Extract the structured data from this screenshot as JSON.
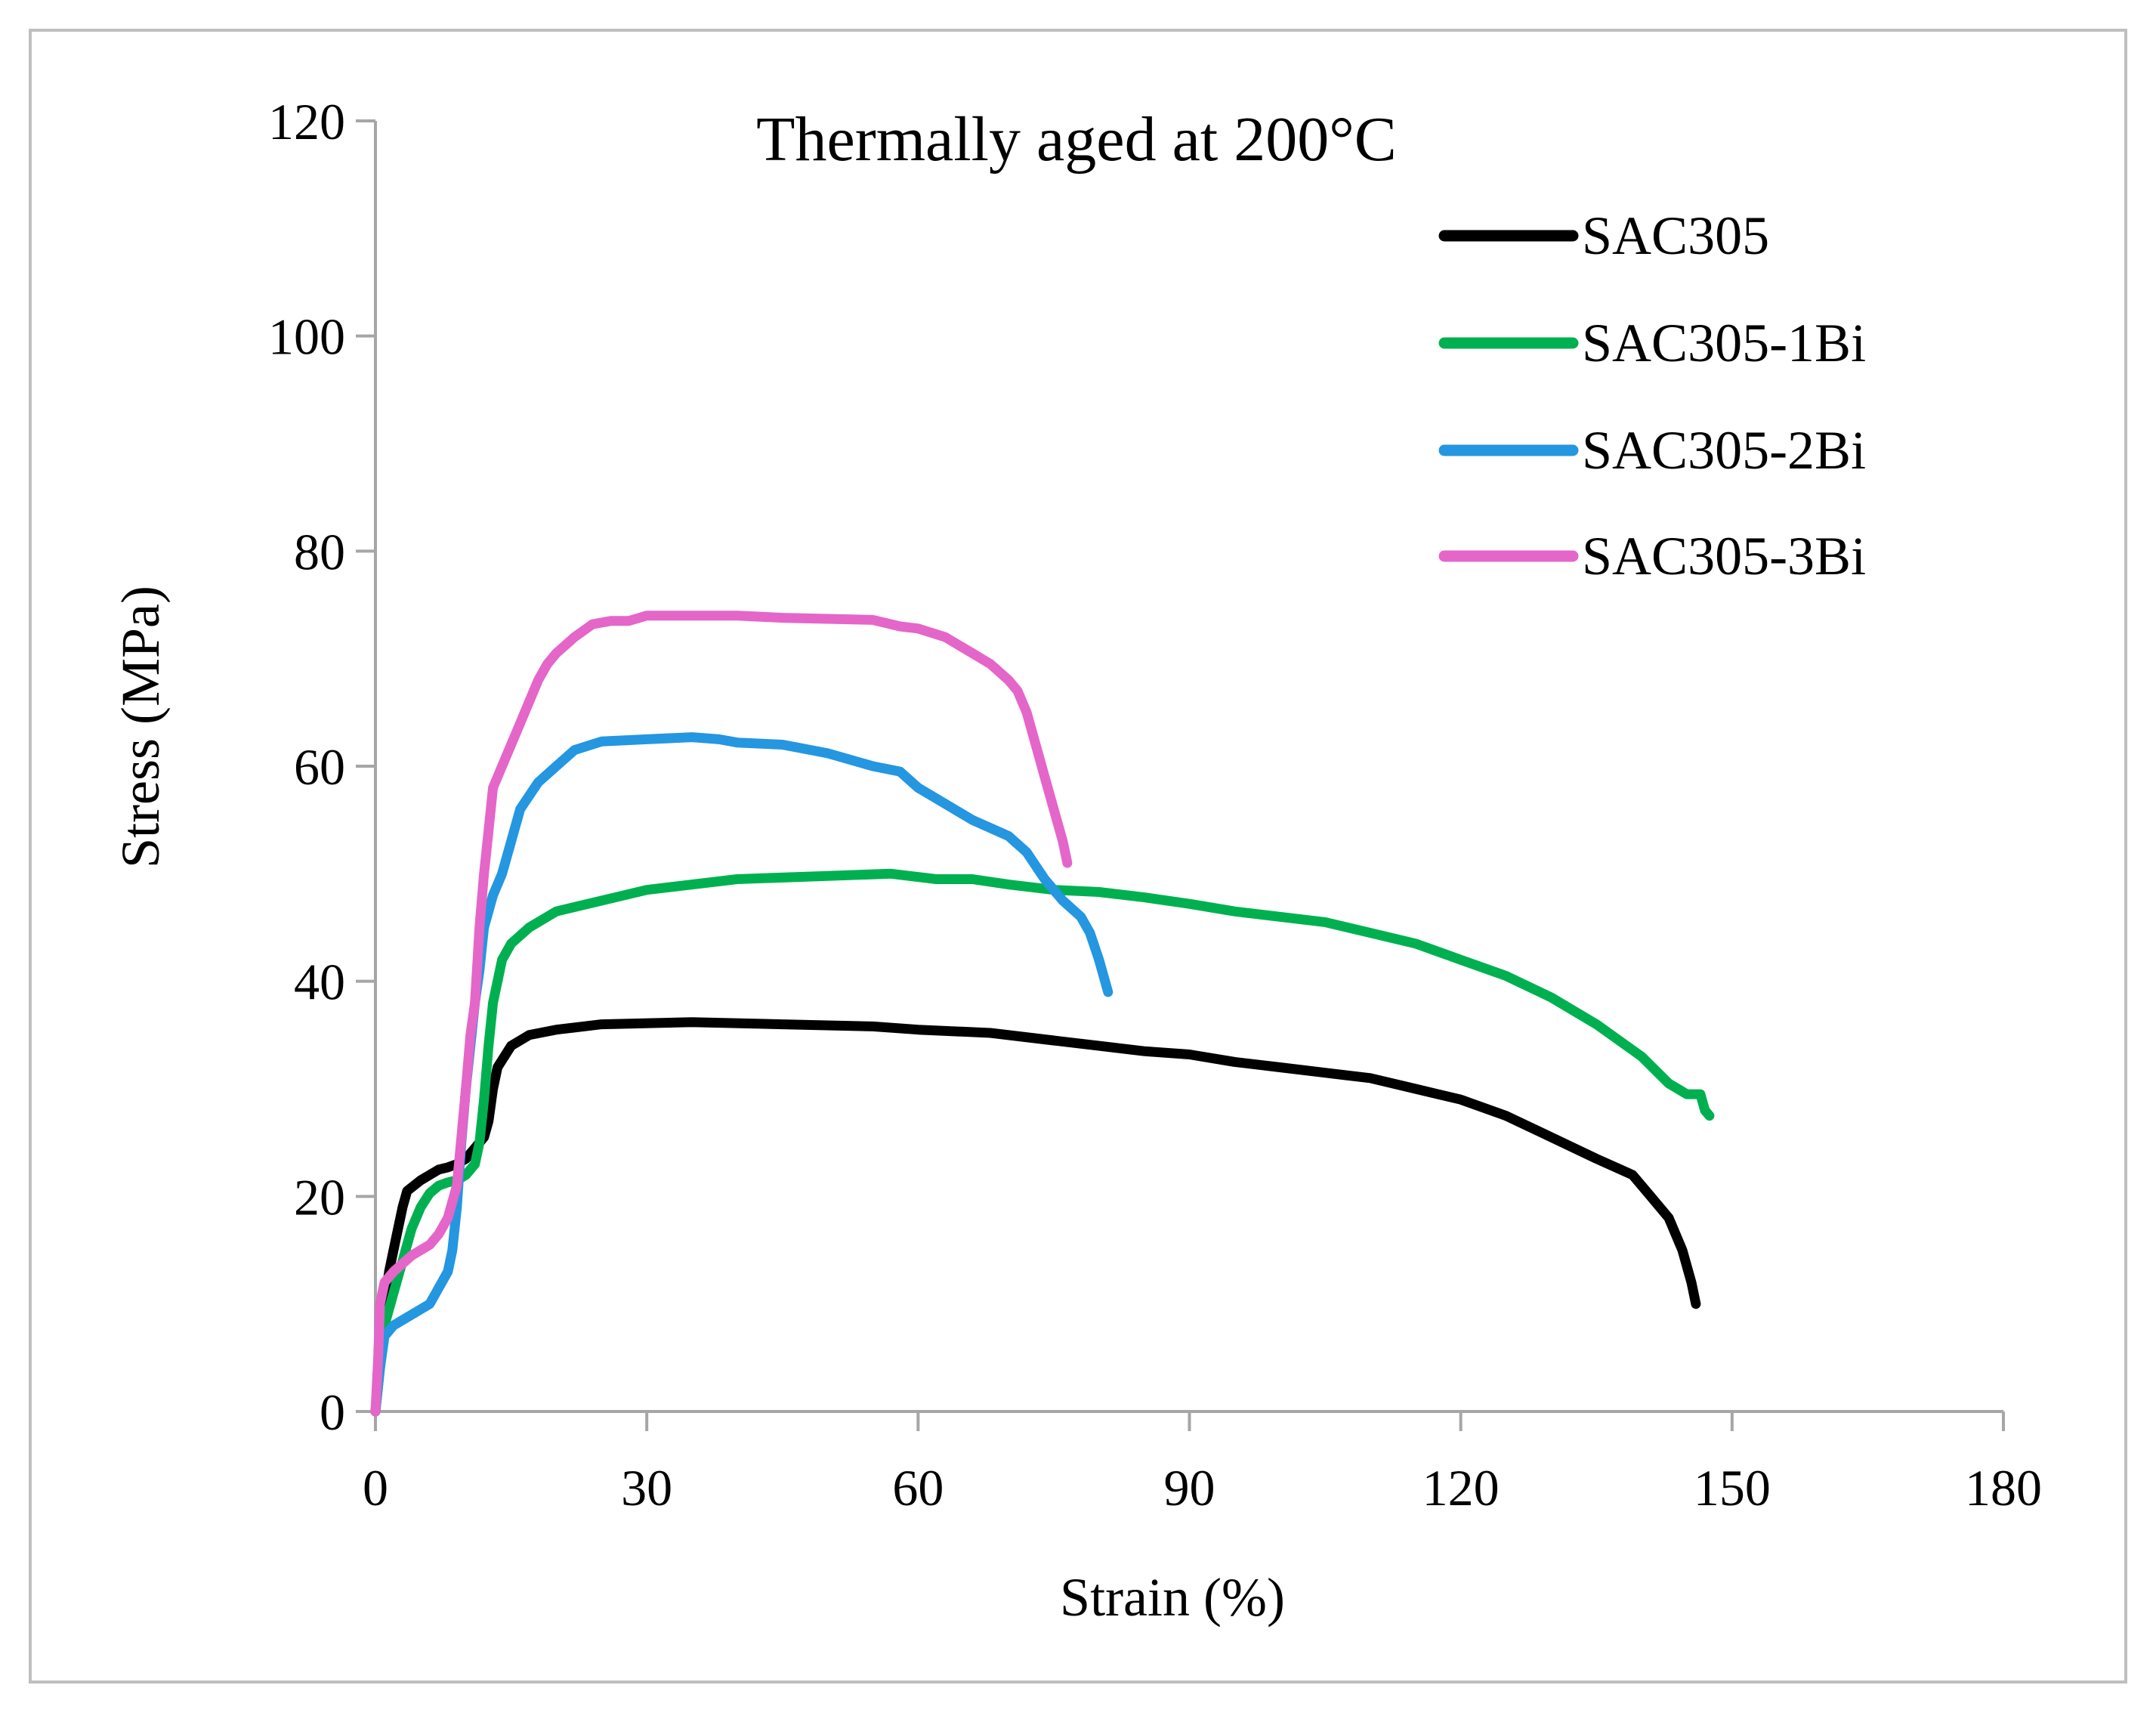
{
  "chart_data": {
    "type": "line",
    "title": "Thermally aged at 200°C",
    "xlabel": "Strain (%)",
    "ylabel": "Stress (MPa)",
    "xlim": [
      0,
      180
    ],
    "ylim": [
      0,
      120
    ],
    "xticks": [
      0,
      30,
      60,
      90,
      120,
      150,
      180
    ],
    "yticks": [
      0,
      20,
      40,
      60,
      80,
      100,
      120
    ],
    "x_tick_labels": [
      "0",
      "30",
      "60",
      "90",
      "120",
      "150",
      "180"
    ],
    "y_tick_labels": [
      "0",
      "20",
      "40",
      "60",
      "80",
      "100",
      "120"
    ],
    "grid": false,
    "legend_position": "top-right",
    "series": [
      {
        "name": "SAC305",
        "color": "#000000",
        "points": [
          [
            0,
            0
          ],
          [
            0.5,
            5
          ],
          [
            1,
            10
          ],
          [
            1.5,
            13
          ],
          [
            2,
            15
          ],
          [
            3,
            19
          ],
          [
            3.5,
            20.5
          ],
          [
            5,
            21.5
          ],
          [
            6,
            22
          ],
          [
            7,
            22.5
          ],
          [
            8,
            22.7
          ],
          [
            9,
            23
          ],
          [
            10,
            23.5
          ],
          [
            11,
            24.5
          ],
          [
            12,
            25.5
          ],
          [
            12.5,
            27
          ],
          [
            13,
            30
          ],
          [
            13.5,
            32
          ],
          [
            15,
            34
          ],
          [
            17,
            35
          ],
          [
            20,
            35.5
          ],
          [
            25,
            36
          ],
          [
            35,
            36.2
          ],
          [
            45,
            36
          ],
          [
            55,
            35.8
          ],
          [
            60,
            35.5
          ],
          [
            68,
            35.2
          ],
          [
            75,
            34.5
          ],
          [
            80,
            34
          ],
          [
            85,
            33.5
          ],
          [
            90,
            33.2
          ],
          [
            95,
            32.5
          ],
          [
            100,
            32
          ],
          [
            105,
            31.5
          ],
          [
            110,
            31
          ],
          [
            115,
            30
          ],
          [
            120,
            29
          ],
          [
            125,
            27.5
          ],
          [
            130,
            25.5
          ],
          [
            135,
            23.5
          ],
          [
            139,
            22
          ],
          [
            141,
            20
          ],
          [
            143,
            18
          ],
          [
            144.5,
            15
          ],
          [
            145.5,
            12
          ],
          [
            146,
            10
          ]
        ]
      },
      {
        "name": "SAC305-1Bi",
        "color": "#00b050",
        "points": [
          [
            0,
            0
          ],
          [
            0.5,
            4
          ],
          [
            1,
            8
          ],
          [
            2,
            11
          ],
          [
            3,
            14
          ],
          [
            4,
            17
          ],
          [
            5,
            19
          ],
          [
            6,
            20.3
          ],
          [
            7,
            21
          ],
          [
            8,
            21.3
          ],
          [
            9,
            21.5
          ],
          [
            10,
            22
          ],
          [
            11,
            23
          ],
          [
            11.5,
            25
          ],
          [
            12,
            29
          ],
          [
            12.5,
            34
          ],
          [
            13,
            38
          ],
          [
            14,
            42
          ],
          [
            15,
            43.5
          ],
          [
            17,
            45
          ],
          [
            20,
            46.5
          ],
          [
            25,
            47.5
          ],
          [
            30,
            48.5
          ],
          [
            40,
            49.5
          ],
          [
            50,
            49.8
          ],
          [
            57,
            50
          ],
          [
            62,
            49.5
          ],
          [
            66,
            49.5
          ],
          [
            70,
            49
          ],
          [
            75,
            48.5
          ],
          [
            80,
            48.3
          ],
          [
            85,
            47.8
          ],
          [
            90,
            47.2
          ],
          [
            95,
            46.5
          ],
          [
            100,
            46
          ],
          [
            105,
            45.5
          ],
          [
            110,
            44.5
          ],
          [
            115,
            43.5
          ],
          [
            120,
            42
          ],
          [
            125,
            40.5
          ],
          [
            130,
            38.5
          ],
          [
            135,
            36
          ],
          [
            140,
            33
          ],
          [
            143,
            30.5
          ],
          [
            145,
            29.5
          ],
          [
            146.5,
            29.5
          ],
          [
            147,
            28
          ],
          [
            147.5,
            27.5
          ]
        ]
      },
      {
        "name": "SAC305-2Bi",
        "color": "#2596e0",
        "points": [
          [
            0,
            0
          ],
          [
            0.5,
            4
          ],
          [
            1,
            7
          ],
          [
            2,
            8
          ],
          [
            4,
            9
          ],
          [
            6,
            10
          ],
          [
            7,
            11.5
          ],
          [
            8,
            13
          ],
          [
            8.5,
            15
          ],
          [
            9,
            19
          ],
          [
            9.5,
            25
          ],
          [
            10,
            30
          ],
          [
            10.5,
            34
          ],
          [
            11,
            38
          ],
          [
            11.5,
            41
          ],
          [
            12,
            45
          ],
          [
            13,
            48
          ],
          [
            14,
            50
          ],
          [
            15,
            53
          ],
          [
            16,
            56
          ],
          [
            18,
            58.5
          ],
          [
            20,
            60
          ],
          [
            22,
            61.5
          ],
          [
            25,
            62.3
          ],
          [
            30,
            62.5
          ],
          [
            35,
            62.7
          ],
          [
            38,
            62.5
          ],
          [
            40,
            62.2
          ],
          [
            45,
            62
          ],
          [
            50,
            61.2
          ],
          [
            55,
            60
          ],
          [
            58,
            59.5
          ],
          [
            60,
            58
          ],
          [
            63,
            56.5
          ],
          [
            66,
            55
          ],
          [
            70,
            53.5
          ],
          [
            72,
            52
          ],
          [
            74,
            49.5
          ],
          [
            76,
            47.5
          ],
          [
            78,
            46
          ],
          [
            79,
            44.5
          ],
          [
            80,
            42
          ],
          [
            81,
            39
          ]
        ]
      },
      {
        "name": "SAC305-3Bi",
        "color": "#e466c9",
        "points": [
          [
            0,
            0
          ],
          [
            0.3,
            5
          ],
          [
            0.5,
            10
          ],
          [
            1,
            12
          ],
          [
            2,
            13
          ],
          [
            4,
            14.5
          ],
          [
            6,
            15.5
          ],
          [
            7,
            16.5
          ],
          [
            8,
            18
          ],
          [
            9,
            21
          ],
          [
            10,
            30
          ],
          [
            10.5,
            35
          ],
          [
            11,
            38
          ],
          [
            11.5,
            45
          ],
          [
            12,
            50
          ],
          [
            12.5,
            54
          ],
          [
            13,
            58
          ],
          [
            14,
            60
          ],
          [
            15,
            62
          ],
          [
            16,
            64
          ],
          [
            17,
            66
          ],
          [
            18,
            68
          ],
          [
            19,
            69.5
          ],
          [
            20,
            70.5
          ],
          [
            22,
            72
          ],
          [
            24,
            73.2
          ],
          [
            26,
            73.5
          ],
          [
            28,
            73.5
          ],
          [
            30,
            74
          ],
          [
            35,
            74
          ],
          [
            40,
            74
          ],
          [
            45,
            73.8
          ],
          [
            50,
            73.7
          ],
          [
            55,
            73.6
          ],
          [
            58,
            73
          ],
          [
            60,
            72.8
          ],
          [
            63,
            72
          ],
          [
            66,
            70.5
          ],
          [
            68,
            69.5
          ],
          [
            70,
            68
          ],
          [
            71,
            67
          ],
          [
            72,
            65
          ],
          [
            73,
            62
          ],
          [
            74,
            59
          ],
          [
            75,
            56
          ],
          [
            76,
            53
          ],
          [
            76.5,
            51
          ]
        ]
      }
    ]
  }
}
